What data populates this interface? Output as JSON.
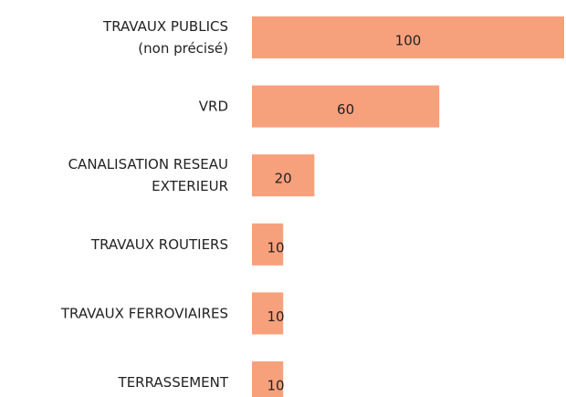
{
  "chart_data": {
    "type": "bar",
    "orientation": "horizontal",
    "categories": [
      "TRAVAUX PUBLICS\n(non précisé)",
      "VRD",
      "CANALISATION RESEAU\nEXTERIEUR",
      "TRAVAUX ROUTIERS",
      "TRAVAUX FERROVIAIRES",
      "TERRASSEMENT"
    ],
    "values": [
      100,
      60,
      20,
      10,
      10,
      10
    ],
    "color": "#f7a07c"
  }
}
